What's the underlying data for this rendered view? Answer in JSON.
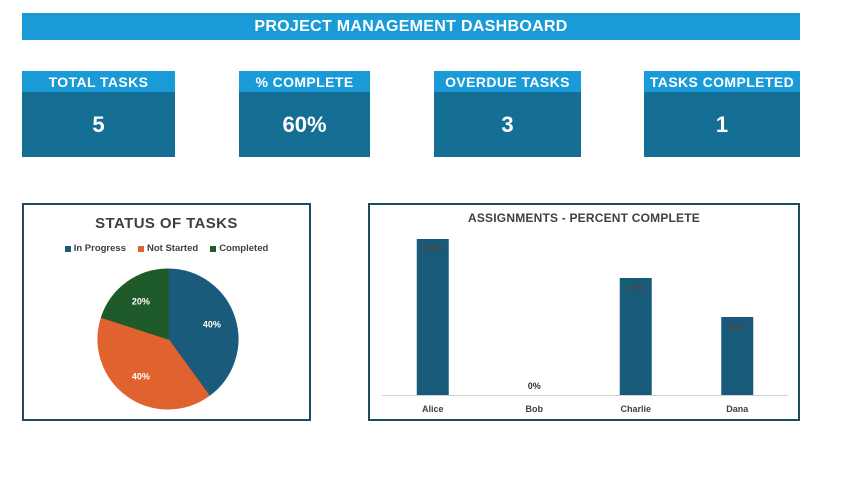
{
  "dashboard": {
    "title": "PROJECT MANAGEMENT DASHBOARD"
  },
  "kpis": [
    {
      "label": "TOTAL TASKS",
      "value": "5"
    },
    {
      "label": "% COMPLETE",
      "value": "60%"
    },
    {
      "label": "OVERDUE TASKS",
      "value": "3"
    },
    {
      "label": "TASKS COMPLETED",
      "value": "1"
    }
  ],
  "colors": {
    "banner": "#1a9bd7",
    "kpi_value_bg": "#156e94",
    "in_progress": "#1a5a7a",
    "not_started": "#e0622e",
    "completed": "#1f5b2a",
    "bar": "#175a7a",
    "panel_border": "#1c4b64"
  },
  "chart_data": [
    {
      "type": "pie",
      "title": "STATUS OF TASKS",
      "legend_position": "top",
      "slices": [
        {
          "name": "In Progress",
          "value": 40,
          "label": "40%",
          "color": "#1a5a7a"
        },
        {
          "name": "Not Started",
          "value": 40,
          "label": "40%",
          "color": "#e0622e"
        },
        {
          "name": "Completed",
          "value": 20,
          "label": "20%",
          "color": "#1f5b2a"
        }
      ]
    },
    {
      "type": "bar",
      "title": "ASSIGNMENTS - PERCENT COMPLETE",
      "categories": [
        "Alice",
        "Bob",
        "Charlie",
        "Dana"
      ],
      "values": [
        100,
        0,
        75,
        50
      ],
      "labels": [
        "100%",
        "0%",
        "75%",
        "50%"
      ],
      "ylim": [
        0,
        100
      ],
      "grid": false
    }
  ]
}
